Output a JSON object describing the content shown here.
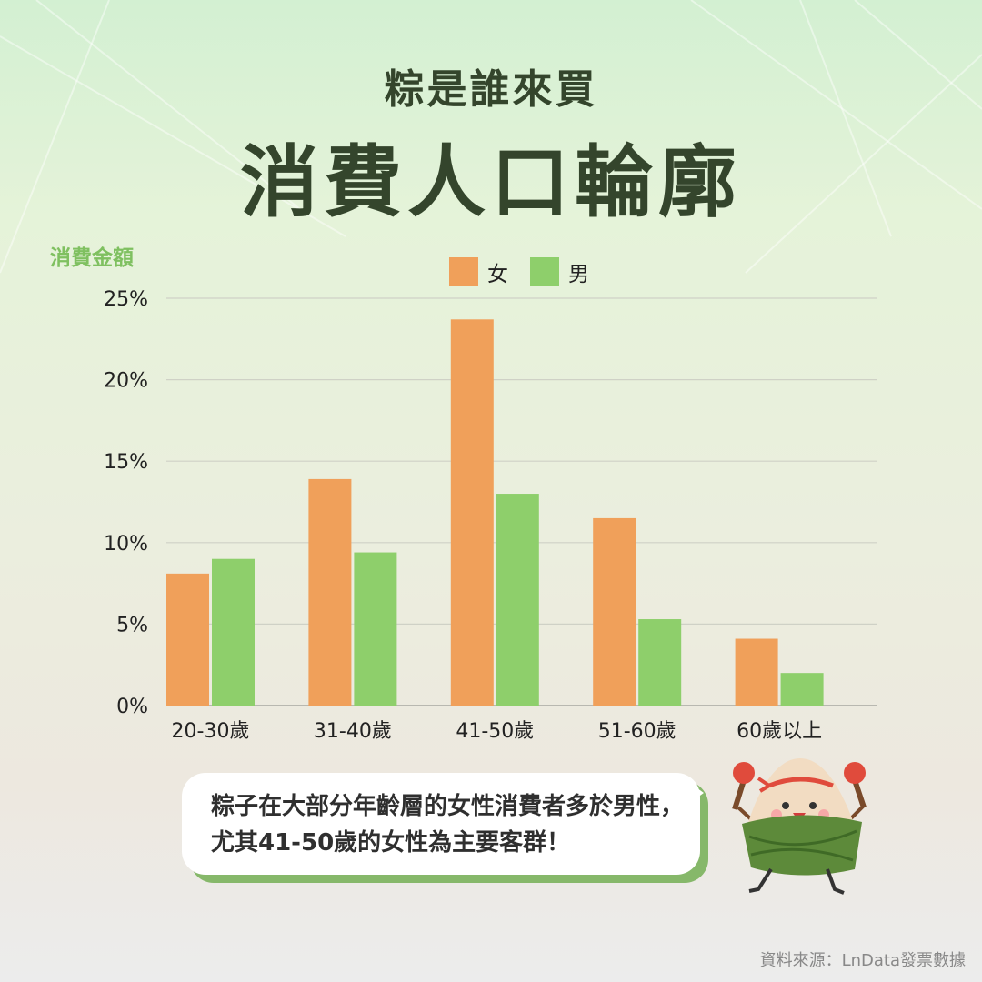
{
  "header": {
    "title": "粽是誰來買",
    "subtitle": "消費人口輪廓"
  },
  "colors": {
    "female": "#f0a05a",
    "male": "#8ecf6b",
    "title": "#34452c",
    "ylabel": "#7fc060"
  },
  "chart_data": {
    "type": "bar",
    "ylabel": "消費金額",
    "categories": [
      "20-30歲",
      "31-40歲",
      "41-50歲",
      "51-60歲",
      "60歲以上"
    ],
    "series": [
      {
        "name": "女",
        "color": "#f0a05a",
        "values": [
          8.1,
          13.9,
          23.7,
          11.5,
          4.1
        ]
      },
      {
        "name": "男",
        "color": "#8ecf6b",
        "values": [
          9.0,
          9.4,
          13.0,
          5.3,
          2.0
        ]
      }
    ],
    "yticks": [
      "0%",
      "5%",
      "10%",
      "15%",
      "20%",
      "25%"
    ],
    "ylim": [
      0,
      25
    ],
    "grid": true,
    "legend": "top"
  },
  "callout": {
    "text": "粽子在大部分年齡層的女性消費者多於男性，尤其41-50歲的女性為主要客群！"
  },
  "mascot": {
    "icon": "zongzi-mascot-icon"
  },
  "source": "資料來源：LnData發票數據"
}
